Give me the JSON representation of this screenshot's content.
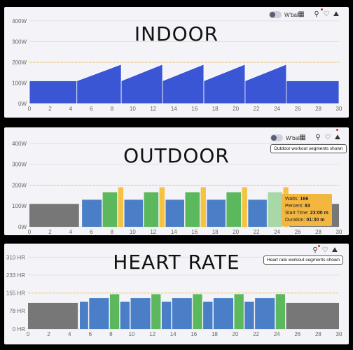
{
  "panels": [
    {
      "title": "INDOOR",
      "wbal_label": "W'bal",
      "chart_data": {
        "type": "area",
        "x_ticks": [
          0,
          2,
          4,
          6,
          8,
          10,
          12,
          14,
          16,
          18,
          20,
          22,
          24,
          26,
          28,
          30
        ],
        "y_ticks": [
          {
            "value": 0,
            "label": "0W"
          },
          {
            "value": 100,
            "label": "100W"
          },
          {
            "value": 200,
            "label": "200W"
          },
          {
            "value": 300,
            "label": "300W"
          },
          {
            "value": 400,
            "label": "400W"
          }
        ],
        "xlim": [
          0,
          30
        ],
        "ylim": [
          0,
          420
        ],
        "ftp_line": 200,
        "segments": [
          {
            "start": 0,
            "end": 4.6,
            "from": 110,
            "to": 110
          },
          {
            "start": 4.6,
            "end": 8.9,
            "from": 110,
            "to": 190
          },
          {
            "start": 8.9,
            "end": 12.9,
            "from": 110,
            "to": 190
          },
          {
            "start": 12.9,
            "end": 16.9,
            "from": 110,
            "to": 190
          },
          {
            "start": 16.9,
            "end": 20.9,
            "from": 110,
            "to": 190
          },
          {
            "start": 20.9,
            "end": 24.9,
            "from": 110,
            "to": 190
          },
          {
            "start": 24.9,
            "end": 30,
            "from": 110,
            "to": 110
          }
        ]
      }
    },
    {
      "title": "OUTDOOR",
      "wbal_label": "W'bal",
      "tooltip": "Outdoor workout segments shown",
      "popup": {
        "watts_label": "Watts:",
        "watts": "166",
        "percent_label": "Percent:",
        "percent": "83",
        "start_label": "Start Time:",
        "start": "23:00 m",
        "duration_label": "Duration:",
        "duration": "01:30 m"
      },
      "chart_data": {
        "type": "bar",
        "x_ticks": [
          0,
          2,
          4,
          6,
          8,
          10,
          12,
          14,
          16,
          18,
          20,
          22,
          24,
          26,
          28,
          30
        ],
        "y_ticks": [
          {
            "value": 0,
            "label": "0W"
          },
          {
            "value": 100,
            "label": "100W"
          },
          {
            "value": 200,
            "label": "200W"
          },
          {
            "value": 300,
            "label": "300W"
          },
          {
            "value": 400,
            "label": "400W"
          }
        ],
        "xlim": [
          0,
          30
        ],
        "ylim": [
          0,
          420
        ],
        "ftp_line": 200,
        "segments": [
          {
            "start": 0,
            "end": 4.8,
            "value": 110,
            "color": "#777777"
          },
          {
            "start": 5.1,
            "end": 7.0,
            "value": 130,
            "color": "#4a7fc8"
          },
          {
            "start": 7.1,
            "end": 8.5,
            "value": 166,
            "color": "#5cb85c"
          },
          {
            "start": 8.6,
            "end": 9.1,
            "value": 190,
            "color": "#f5c242"
          },
          {
            "start": 9.2,
            "end": 11.0,
            "value": 130,
            "color": "#4a7fc8"
          },
          {
            "start": 11.1,
            "end": 12.5,
            "value": 166,
            "color": "#5cb85c"
          },
          {
            "start": 12.6,
            "end": 13.1,
            "value": 190,
            "color": "#f5c242"
          },
          {
            "start": 13.2,
            "end": 15.0,
            "value": 130,
            "color": "#4a7fc8"
          },
          {
            "start": 15.1,
            "end": 16.5,
            "value": 166,
            "color": "#5cb85c"
          },
          {
            "start": 16.6,
            "end": 17.1,
            "value": 190,
            "color": "#f5c242"
          },
          {
            "start": 17.2,
            "end": 19.0,
            "value": 130,
            "color": "#4a7fc8"
          },
          {
            "start": 19.1,
            "end": 20.5,
            "value": 166,
            "color": "#5cb85c"
          },
          {
            "start": 20.6,
            "end": 21.1,
            "value": 190,
            "color": "#f5c242"
          },
          {
            "start": 21.2,
            "end": 23.0,
            "value": 130,
            "color": "#4a7fc8"
          },
          {
            "start": 23.1,
            "end": 24.5,
            "value": 166,
            "color": "#a8d8a8"
          },
          {
            "start": 24.6,
            "end": 25.1,
            "value": 190,
            "color": "#f5c242"
          },
          {
            "start": 25.2,
            "end": 30,
            "value": 110,
            "color": "#777777"
          }
        ]
      }
    },
    {
      "title": "HEART RATE",
      "tooltip": "Heart rate workout segments shown",
      "chart_data": {
        "type": "bar",
        "x_ticks": [
          0,
          2,
          4,
          6,
          8,
          10,
          12,
          14,
          16,
          18,
          20,
          22,
          24,
          26,
          28,
          30
        ],
        "y_ticks": [
          {
            "value": 0,
            "label": "0 HR"
          },
          {
            "value": 78,
            "label": "78 HR"
          },
          {
            "value": 155,
            "label": "155 HR"
          },
          {
            "value": 233,
            "label": "233 HR"
          },
          {
            "value": 310,
            "label": "310 HR"
          }
        ],
        "xlim": [
          0,
          30
        ],
        "ylim": [
          0,
          320
        ],
        "ftp_line": 155,
        "segments": [
          {
            "start": 0,
            "end": 4.8,
            "value": 112,
            "color": "#777777"
          },
          {
            "start": 5.0,
            "end": 5.8,
            "value": 118,
            "color": "#4a7fc8"
          },
          {
            "start": 5.9,
            "end": 7.8,
            "value": 133,
            "color": "#4a7fc8"
          },
          {
            "start": 7.9,
            "end": 8.8,
            "value": 150,
            "color": "#5cb85c"
          },
          {
            "start": 8.9,
            "end": 9.8,
            "value": 118,
            "color": "#4a7fc8"
          },
          {
            "start": 9.9,
            "end": 11.8,
            "value": 133,
            "color": "#4a7fc8"
          },
          {
            "start": 11.9,
            "end": 12.8,
            "value": 150,
            "color": "#5cb85c"
          },
          {
            "start": 12.9,
            "end": 13.8,
            "value": 118,
            "color": "#4a7fc8"
          },
          {
            "start": 13.9,
            "end": 15.8,
            "value": 133,
            "color": "#4a7fc8"
          },
          {
            "start": 15.9,
            "end": 16.8,
            "value": 150,
            "color": "#5cb85c"
          },
          {
            "start": 16.9,
            "end": 17.8,
            "value": 118,
            "color": "#4a7fc8"
          },
          {
            "start": 17.9,
            "end": 19.8,
            "value": 133,
            "color": "#4a7fc8"
          },
          {
            "start": 19.9,
            "end": 20.8,
            "value": 150,
            "color": "#5cb85c"
          },
          {
            "start": 20.9,
            "end": 21.8,
            "value": 118,
            "color": "#4a7fc8"
          },
          {
            "start": 21.9,
            "end": 23.8,
            "value": 133,
            "color": "#4a7fc8"
          },
          {
            "start": 23.9,
            "end": 24.8,
            "value": 150,
            "color": "#5cb85c"
          },
          {
            "start": 24.9,
            "end": 30,
            "value": 112,
            "color": "#777777"
          }
        ]
      }
    }
  ],
  "colors": {
    "indoor_fill": "#3a56d4",
    "grid": "#dedee6",
    "ftp_dashed": "#f2c14e",
    "tick_text": "#666666"
  },
  "icons": [
    "toggle-icon",
    "calculator-icon",
    "cyclist-icon",
    "heart-rate-icon",
    "outdoor-ride-icon"
  ]
}
